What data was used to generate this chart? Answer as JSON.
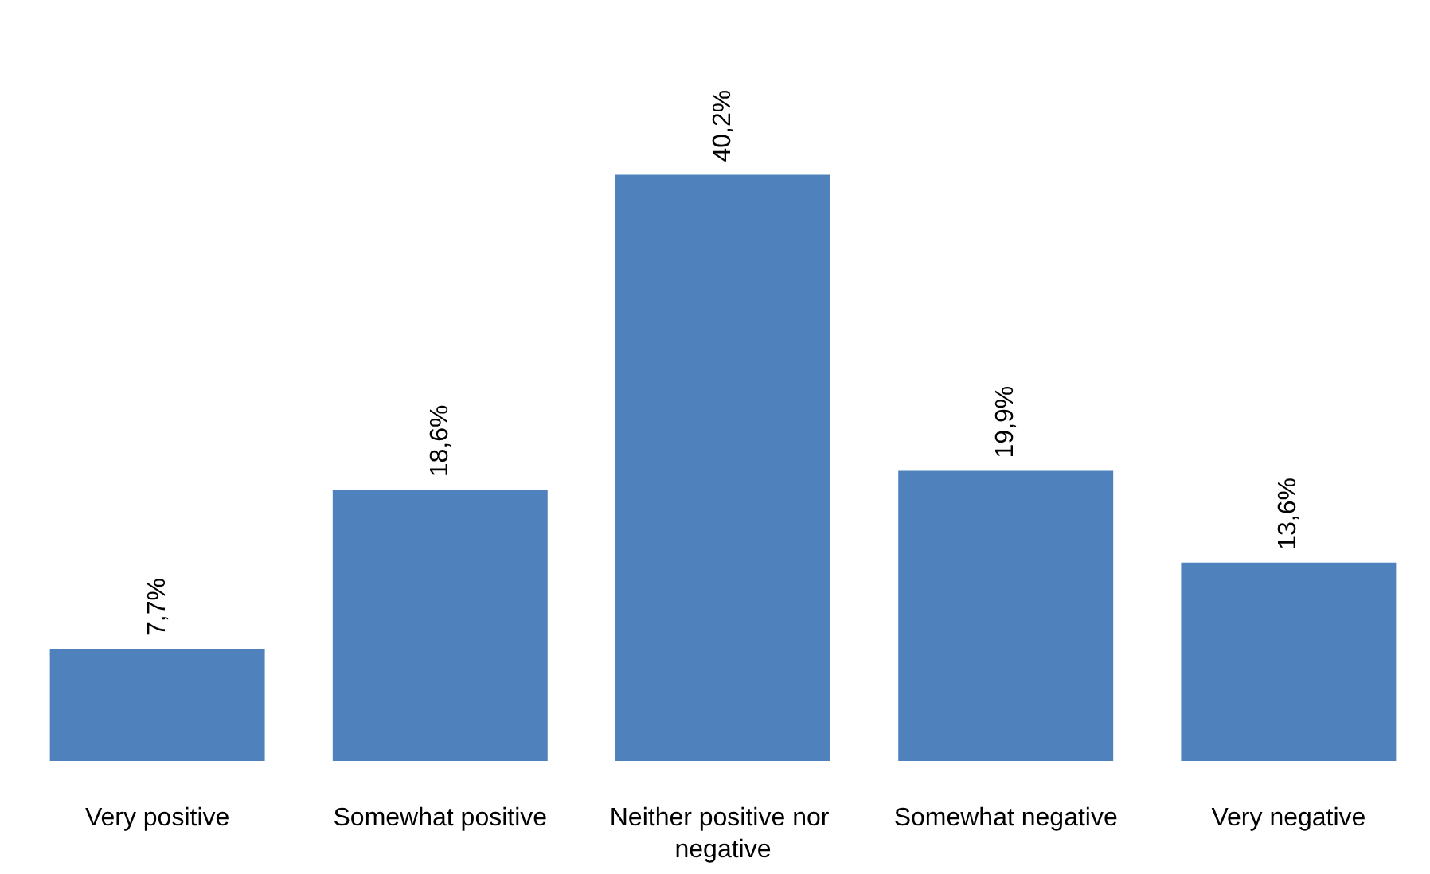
{
  "chart_data": {
    "type": "bar",
    "categories": [
      "Very positive",
      "Somewhat positive",
      "Neither positive nor negative",
      "Somewhat negative",
      "Very negative"
    ],
    "values": [
      7.7,
      18.6,
      40.2,
      19.9,
      13.6
    ],
    "value_labels": [
      "7,7%",
      "18,6%",
      "40,2%",
      "19,9%",
      "13,6%"
    ],
    "color": "#4f81bd"
  }
}
